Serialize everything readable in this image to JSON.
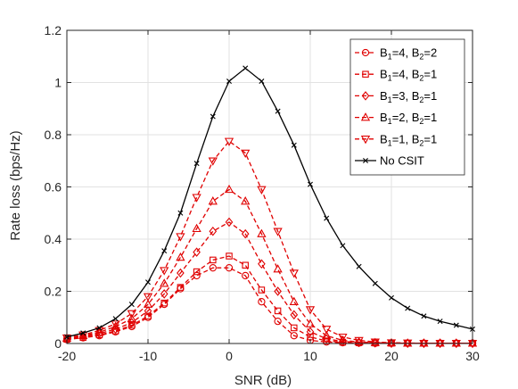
{
  "chart_data": {
    "type": "line",
    "xlabel": "SNR (dB)",
    "ylabel": "Rate loss (bps/Hz)",
    "xlim": [
      -20,
      30
    ],
    "ylim": [
      0,
      1.2
    ],
    "xticks": [
      "-20",
      "-10",
      "0",
      "10",
      "20",
      "30"
    ],
    "yticks": [
      "0",
      "0.2",
      "0.4",
      "0.6",
      "0.8",
      "1",
      "1.2"
    ],
    "grid": true,
    "legend_position": "top-right",
    "x": [
      -20,
      -18,
      -16,
      -14,
      -12,
      -10,
      -8,
      -6,
      -4,
      -2,
      0,
      2,
      4,
      6,
      8,
      10,
      12,
      14,
      16,
      18,
      20,
      22,
      24,
      26,
      28,
      30
    ],
    "series": [
      {
        "name": "B1=4, B2=2",
        "label_parts": [
          "B",
          "1",
          "=4, B",
          "2",
          "=2"
        ],
        "color": "#e00000",
        "dash": true,
        "marker": "circle",
        "values": [
          0.015,
          0.022,
          0.03,
          0.045,
          0.065,
          0.1,
          0.15,
          0.21,
          0.26,
          0.29,
          0.29,
          0.26,
          0.16,
          0.085,
          0.03,
          0.012,
          0.006,
          0.003,
          0.002,
          0.001,
          0.001,
          0.001,
          0.001,
          0.001,
          0.001,
          0.001
        ]
      },
      {
        "name": "B1=4, B2=1",
        "label_parts": [
          "B",
          "1",
          "=4, B",
          "2",
          "=1"
        ],
        "color": "#e00000",
        "dash": true,
        "marker": "square",
        "values": [
          0.016,
          0.023,
          0.033,
          0.048,
          0.07,
          0.105,
          0.155,
          0.215,
          0.275,
          0.32,
          0.335,
          0.3,
          0.205,
          0.125,
          0.06,
          0.025,
          0.01,
          0.005,
          0.003,
          0.002,
          0.001,
          0.001,
          0.001,
          0.001,
          0.001,
          0.001
        ]
      },
      {
        "name": "B1=3, B2=1",
        "label_parts": [
          "B",
          "1",
          "=3, B",
          "2",
          "=1"
        ],
        "color": "#e00000",
        "dash": true,
        "marker": "diamond",
        "values": [
          0.018,
          0.026,
          0.038,
          0.055,
          0.08,
          0.125,
          0.19,
          0.27,
          0.35,
          0.43,
          0.465,
          0.42,
          0.305,
          0.2,
          0.11,
          0.045,
          0.018,
          0.008,
          0.004,
          0.002,
          0.001,
          0.001,
          0.001,
          0.001,
          0.001,
          0.001
        ]
      },
      {
        "name": "B1=2, B2=1",
        "label_parts": [
          "B",
          "1",
          "=2, B",
          "2",
          "=1"
        ],
        "color": "#e00000",
        "dash": true,
        "marker": "triangle-up",
        "values": [
          0.02,
          0.03,
          0.043,
          0.065,
          0.095,
          0.15,
          0.23,
          0.33,
          0.44,
          0.545,
          0.59,
          0.545,
          0.42,
          0.285,
          0.16,
          0.075,
          0.03,
          0.012,
          0.006,
          0.003,
          0.002,
          0.001,
          0.001,
          0.001,
          0.001,
          0.001
        ]
      },
      {
        "name": "B1=1, B2=1",
        "label_parts": [
          "B",
          "1",
          "=1, B",
          "2",
          "=1"
        ],
        "color": "#e00000",
        "dash": true,
        "marker": "triangle-down",
        "values": [
          0.022,
          0.033,
          0.05,
          0.075,
          0.115,
          0.18,
          0.28,
          0.41,
          0.56,
          0.7,
          0.775,
          0.73,
          0.59,
          0.43,
          0.27,
          0.13,
          0.055,
          0.025,
          0.012,
          0.006,
          0.003,
          0.002,
          0.001,
          0.001,
          0.001,
          0.001
        ]
      },
      {
        "name": "No CSIT",
        "label_parts": [
          "No CSIT"
        ],
        "color": "#000000",
        "dash": false,
        "marker": "cross",
        "values": [
          0.025,
          0.04,
          0.06,
          0.095,
          0.15,
          0.235,
          0.355,
          0.5,
          0.69,
          0.87,
          1.005,
          1.055,
          1.005,
          0.89,
          0.76,
          0.61,
          0.48,
          0.375,
          0.295,
          0.23,
          0.175,
          0.135,
          0.105,
          0.085,
          0.07,
          0.055
        ]
      }
    ]
  }
}
